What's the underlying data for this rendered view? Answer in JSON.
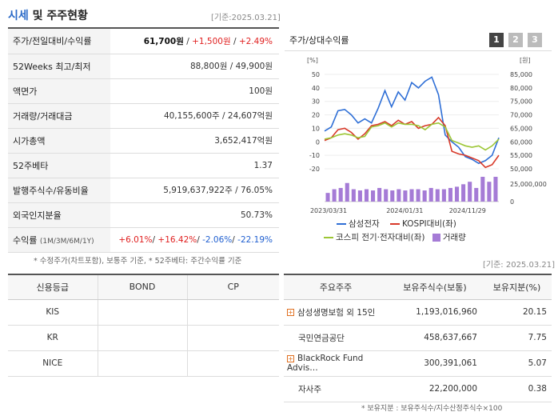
{
  "header": {
    "title_hl": "시세",
    "title_rest": " 및 주주현황",
    "asof": "[기준:2025.03.21]"
  },
  "info_rows": [
    {
      "label": "주가/전일대비/수익률",
      "price": "61,700원",
      "change": "+1,500원",
      "rate": "+2.49%"
    },
    {
      "label": "52Weeks 최고/최저",
      "value": "88,800원 / 49,900원"
    },
    {
      "label": "액면가",
      "value": "100원"
    },
    {
      "label": "거래량/거래대금",
      "value": "40,155,600주 / 24,607억원"
    },
    {
      "label": "시가총액",
      "value": "3,652,417억원"
    },
    {
      "label": "52주베타",
      "value": "1.37"
    },
    {
      "label": "발행주식수/유동비율",
      "value": "5,919,637,922주 / 76.05%"
    },
    {
      "label": "외국인지분율",
      "value": "50.73%"
    },
    {
      "label": "수익률",
      "label_sub": "(1M/3M/6M/1Y)",
      "r1": "+6.01%",
      "r2": "+16.42%",
      "r3": "-2.06%",
      "r4": "-22.19%"
    }
  ],
  "info_note": "* 수정주가(차트포함), 보통주 기준, * 52주베타: 주간수익률 기준",
  "chart_panel": {
    "title": "주가/상대수익률",
    "tabs": [
      "1",
      "2",
      "3"
    ]
  },
  "chart_data": {
    "type": "line",
    "left_unit": "[%]",
    "right_unit": "[원]",
    "left_ticks": [
      50,
      40,
      30,
      20,
      10,
      0,
      -10,
      -20
    ],
    "right_ticks": [
      "85,000",
      "80,000",
      "75,000",
      "70,000",
      "65,000",
      "60,000",
      "55,000",
      "50,000"
    ],
    "volume_ticks": [
      "25,000,000",
      "0"
    ],
    "x_labels": [
      "2023/03/31",
      "2024/01/31",
      "2024/11/29"
    ],
    "ylim": [
      -23,
      53
    ],
    "series": [
      {
        "name": "삼성전자",
        "color": "#2f6fd6",
        "values": [
          8,
          11,
          23,
          24,
          20,
          14,
          17,
          14,
          25,
          38,
          26,
          37,
          31,
          44,
          40,
          45,
          48,
          35,
          5,
          0,
          -4,
          -11,
          -13,
          -16,
          -14,
          -10,
          3
        ]
      },
      {
        "name": "KOSPI대비(좌)",
        "color": "#d83a2a",
        "values": [
          1,
          3,
          9,
          10,
          7,
          2,
          6,
          12,
          13,
          15,
          12,
          16,
          13,
          15,
          10,
          12,
          13,
          18,
          12,
          -7,
          -9,
          -10,
          -12,
          -14,
          -19,
          -17,
          -10
        ]
      },
      {
        "name": "코스피 전기·전자대비(좌)",
        "color": "#9cc635",
        "values": [
          2,
          3,
          5,
          6,
          5,
          3,
          4,
          11,
          12,
          14,
          11,
          14,
          13,
          13,
          12,
          9,
          13,
          14,
          11,
          1,
          -1,
          -3,
          -4,
          -3,
          -6,
          -3,
          2
        ]
      }
    ],
    "volume": {
      "name": "거래량",
      "color": "#a57bd6",
      "values": [
        0.35,
        0.5,
        0.55,
        0.75,
        0.5,
        0.45,
        0.5,
        0.45,
        0.55,
        0.5,
        0.45,
        0.5,
        0.45,
        0.5,
        0.5,
        0.45,
        0.55,
        0.5,
        0.5,
        0.55,
        0.6,
        0.7,
        0.8,
        0.55,
        1.0,
        0.8,
        1.0
      ]
    }
  },
  "credit": {
    "headers": [
      "신용등급",
      "BOND",
      "CP"
    ],
    "rows": [
      {
        "agency": "KIS",
        "bond": "",
        "cp": ""
      },
      {
        "agency": "KR",
        "bond": "",
        "cp": ""
      },
      {
        "agency": "NICE",
        "bond": "",
        "cp": ""
      }
    ]
  },
  "holders": {
    "asof": "[기준: 2025.03.21]",
    "headers": [
      "주요주주",
      "보유주식수(보통)",
      "보유지분(%)"
    ],
    "rows": [
      {
        "name": "삼성생명보험 외 15인",
        "shares": "1,193,016,960",
        "pct": "20.15",
        "expand": true
      },
      {
        "name": "국민연금공단",
        "shares": "458,637,667",
        "pct": "7.75",
        "expand": false
      },
      {
        "name": "BlackRock Fund Advis…",
        "shares": "300,391,061",
        "pct": "5.07",
        "expand": true
      },
      {
        "name": "자사주",
        "shares": "22,200,000",
        "pct": "0.38",
        "expand": false
      }
    ],
    "note": "* 보유지분 : 보유주식수/지수산정주식수×100"
  }
}
